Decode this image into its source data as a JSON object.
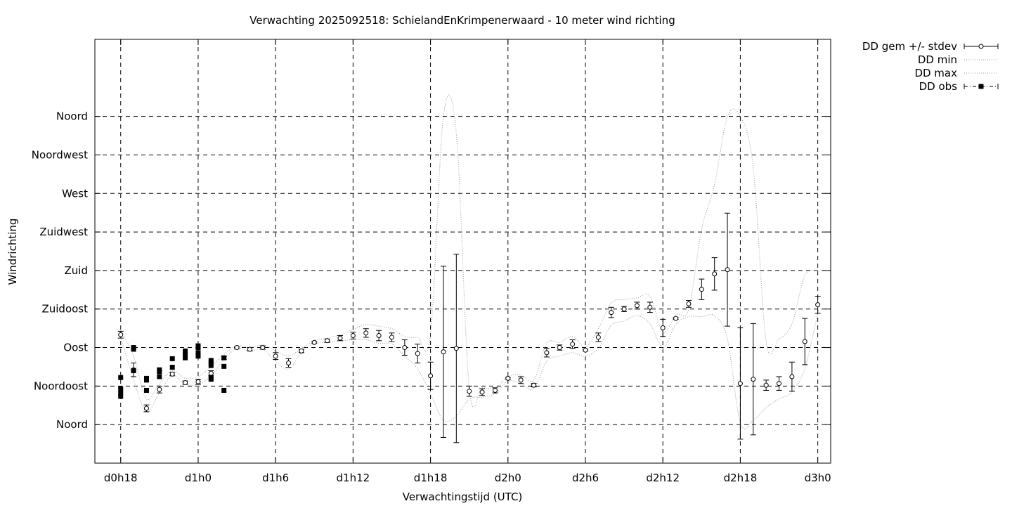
{
  "chart_data": {
    "type": "scatter",
    "title": "Verwachting 2025092518: SchielandEnKrimpenerwaard - 10 meter wind richting",
    "xlabel": "Verwachtingstijd (UTC)",
    "ylabel": "Windrichting",
    "x_unit": "hours since d0h0",
    "xlim": [
      16,
      73
    ],
    "ylim": [
      -45,
      450
    ],
    "x_ticks": [
      {
        "value": 18,
        "label": "d0h18"
      },
      {
        "value": 24,
        "label": "d1h0"
      },
      {
        "value": 30,
        "label": "d1h6"
      },
      {
        "value": 36,
        "label": "d1h12"
      },
      {
        "value": 42,
        "label": "d1h18"
      },
      {
        "value": 48,
        "label": "d2h0"
      },
      {
        "value": 54,
        "label": "d2h6"
      },
      {
        "value": 60,
        "label": "d2h12"
      },
      {
        "value": 66,
        "label": "d2h18"
      },
      {
        "value": 72,
        "label": "d3h0"
      }
    ],
    "y_ticks": [
      {
        "value": 0,
        "label": "Noord"
      },
      {
        "value": 45,
        "label": "Noordoost"
      },
      {
        "value": 90,
        "label": "Oost"
      },
      {
        "value": 135,
        "label": "Zuidoost"
      },
      {
        "value": 180,
        "label": "Zuid"
      },
      {
        "value": 225,
        "label": "Zuidwest"
      },
      {
        "value": 270,
        "label": "West"
      },
      {
        "value": 315,
        "label": "Noordwest"
      },
      {
        "value": 360,
        "label": "Noord"
      }
    ],
    "grid": true,
    "legend_position": "outside-top-right",
    "series": [
      {
        "name": "DD gem +/- stdev",
        "style": "errorbars",
        "x": [
          18,
          19,
          20,
          21,
          22,
          23,
          24,
          25,
          26,
          27,
          28,
          29,
          30,
          31,
          32,
          33,
          34,
          35,
          36,
          37,
          38,
          39,
          40,
          41,
          42,
          43,
          44,
          45,
          46,
          47,
          48,
          49,
          50,
          51,
          52,
          53,
          54,
          55,
          56,
          57,
          58,
          59,
          60,
          61,
          62,
          63,
          64,
          65,
          66,
          67,
          68,
          69,
          70,
          71,
          72
        ],
        "mean": [
          105,
          64,
          19,
          41,
          59,
          49,
          50,
          60,
          78,
          90,
          88,
          90,
          80,
          72,
          86,
          96,
          98,
          101,
          104,
          107,
          104,
          102,
          90,
          83,
          57,
          85,
          89,
          39,
          38,
          40,
          54,
          52,
          46,
          84,
          90,
          94,
          87,
          102,
          131,
          135,
          139,
          137,
          113,
          124,
          141,
          158,
          176,
          181,
          48,
          53,
          46,
          48,
          56,
          97,
          140
        ],
        "sd": [
          4,
          8,
          4,
          4,
          2,
          2,
          3,
          3,
          2,
          1,
          2,
          2,
          4,
          5,
          2,
          1,
          2,
          3,
          4,
          5,
          6,
          5,
          9,
          11,
          16,
          100,
          110,
          6,
          4,
          3,
          1,
          4,
          2,
          5,
          3,
          5,
          1,
          5,
          6,
          3,
          4,
          6,
          10,
          1,
          4,
          12,
          19,
          66,
          65,
          65,
          6,
          8,
          17,
          27,
          10
        ]
      },
      {
        "name": "DD min",
        "style": "dotted",
        "x": [
          18,
          19,
          20,
          21,
          22,
          23,
          24,
          25,
          26,
          27,
          28,
          29,
          30,
          31,
          32,
          33,
          34,
          35,
          36,
          37,
          38,
          39,
          40,
          41,
          42,
          43,
          44,
          45,
          46,
          47,
          48,
          49,
          50,
          51,
          52,
          53,
          54,
          55,
          56,
          57,
          58,
          59,
          60,
          61,
          62,
          63,
          64,
          65,
          66,
          67,
          68,
          69,
          70,
          71,
          72
        ],
        "values": [
          102,
          52,
          15,
          37,
          57,
          47,
          47,
          57,
          76,
          89,
          86,
          88,
          74,
          65,
          84,
          95,
          96,
          98,
          99,
          99,
          95,
          94,
          80,
          65,
          36,
          5,
          10,
          30,
          32,
          36,
          51,
          48,
          42,
          74,
          80,
          84,
          80,
          89,
          116,
          121,
          127,
          118,
          90,
          117,
          126,
          126,
          127,
          100,
          2,
          5,
          20,
          30,
          38,
          66,
          130
        ]
      },
      {
        "name": "DD max",
        "style": "dotted",
        "x": [
          18,
          19,
          20,
          21,
          22,
          23,
          24,
          25,
          26,
          27,
          28,
          29,
          30,
          31,
          32,
          33,
          34,
          35,
          36,
          37,
          38,
          39,
          40,
          41,
          42,
          43,
          44,
          45,
          46,
          47,
          48,
          49,
          50,
          51,
          52,
          53,
          54,
          55,
          56,
          57,
          58,
          59,
          60,
          61,
          62,
          63,
          64,
          65,
          66,
          67,
          68,
          69,
          70,
          71,
          72
        ],
        "values": [
          110,
          80,
          30,
          48,
          63,
          54,
          56,
          68,
          82,
          92,
          90,
          93,
          86,
          80,
          89,
          98,
          101,
          105,
          111,
          117,
          115,
          112,
          103,
          102,
          105,
          360,
          340,
          42,
          43,
          43,
          56,
          58,
          52,
          95,
          96,
          103,
          91,
          112,
          142,
          146,
          148,
          150,
          108,
          128,
          135,
          228,
          280,
          360,
          360,
          300,
          97,
          100,
          118,
          174,
          180
        ]
      },
      {
        "name": "DD obs",
        "style": "squares",
        "points": [
          [
            18,
            55
          ],
          [
            18,
            42
          ],
          [
            18,
            37
          ],
          [
            18,
            33
          ],
          [
            19,
            63
          ],
          [
            19,
            63
          ],
          [
            19,
            88
          ],
          [
            19,
            90
          ],
          [
            20,
            52
          ],
          [
            20,
            54
          ],
          [
            20,
            40
          ],
          [
            21,
            62
          ],
          [
            21,
            56
          ],
          [
            21,
            64
          ],
          [
            22,
            77
          ],
          [
            22,
            67
          ],
          [
            23,
            82
          ],
          [
            23,
            78
          ],
          [
            23,
            86
          ],
          [
            24,
            90
          ],
          [
            24,
            92
          ],
          [
            24,
            84
          ],
          [
            24,
            80
          ],
          [
            25,
            75
          ],
          [
            25,
            72
          ],
          [
            25,
            69
          ],
          [
            25,
            53
          ],
          [
            25,
            55
          ],
          [
            26,
            78
          ],
          [
            26,
            68
          ],
          [
            26,
            40
          ]
        ]
      }
    ]
  }
}
